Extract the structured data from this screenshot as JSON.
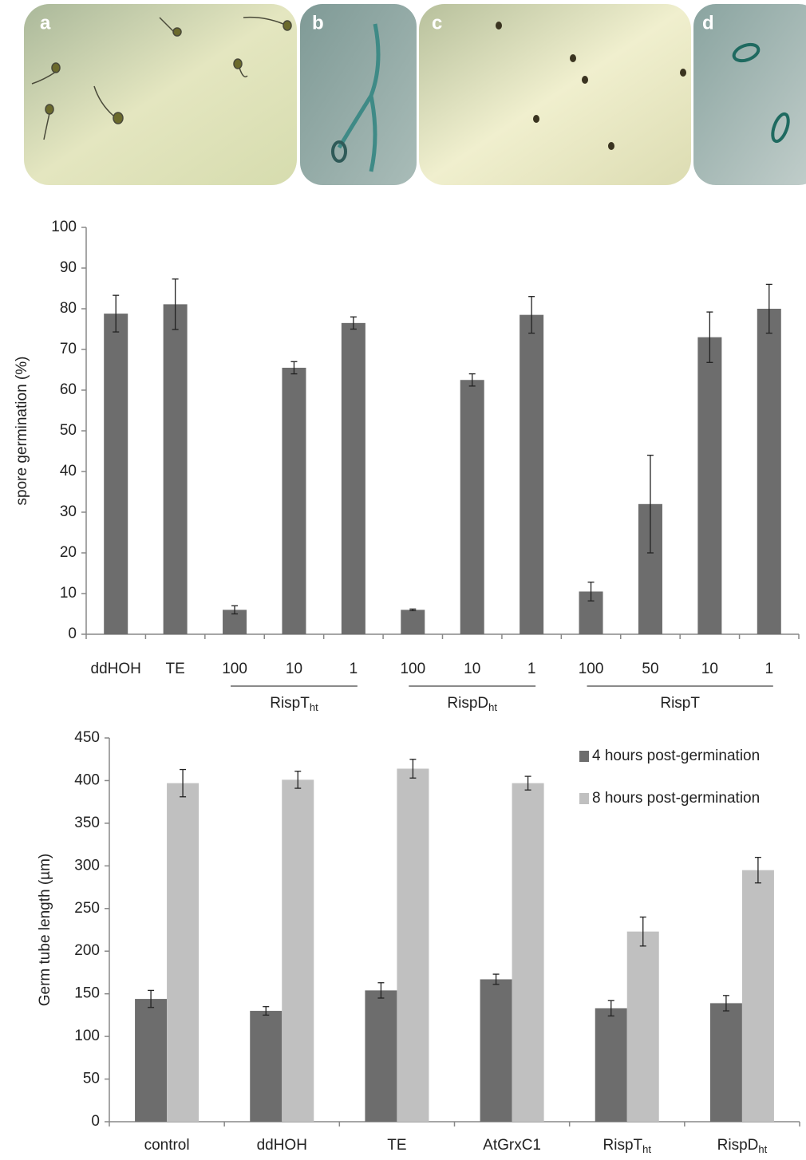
{
  "image_panels": [
    "a",
    "b",
    "c",
    "d"
  ],
  "chart_data": [
    {
      "type": "bar",
      "y_label": "spore germination (%)",
      "categories": [
        "ddHOH",
        "TE",
        "100",
        "10",
        "1",
        "100",
        "10",
        "1",
        "100",
        "50",
        "10",
        "1"
      ],
      "values": [
        78.8,
        81.1,
        6,
        65.5,
        76.5,
        6,
        62.5,
        78.5,
        10.5,
        32,
        73,
        80
      ],
      "errors": [
        4.5,
        6.2,
        1,
        1.5,
        1.5,
        0.2,
        1.5,
        4.5,
        2.3,
        12,
        6.2,
        6
      ],
      "color": "#6d6d6d",
      "groups": [
        {
          "text": "RispT",
          "sub": "ht"
        },
        {
          "text": "RispD",
          "sub": "ht"
        },
        {
          "text": "RispT"
        }
      ],
      "ylim": [
        0,
        100
      ],
      "yticks": [
        0,
        10,
        20,
        30,
        40,
        50,
        60,
        70,
        80,
        90,
        100
      ],
      "grid": false
    },
    {
      "type": "bar",
      "y_label": "Germ tube length (µm)",
      "categories": [
        "control",
        "ddHOH",
        "TE",
        "AtGrxC1",
        {
          "text": "RispT",
          "sub": "ht"
        },
        {
          "text": "RispD",
          "sub": "ht"
        }
      ],
      "series": [
        {
          "name": "4 hours post-germination",
          "color": "#6d6d6d",
          "values": [
            144,
            130,
            154,
            167,
            133,
            139
          ],
          "errors": [
            10,
            5,
            9,
            6,
            9,
            9
          ]
        },
        {
          "name": "8 hours post-germination",
          "color": "#c0c0c0",
          "values": [
            397,
            401,
            414,
            397,
            223,
            295
          ],
          "errors": [
            16,
            10,
            11,
            8,
            17,
            15
          ]
        }
      ],
      "ylim": [
        0,
        450
      ],
      "yticks": [
        0,
        50,
        100,
        150,
        200,
        250,
        300,
        350,
        400,
        450
      ],
      "grid": false,
      "legend": "top-right"
    }
  ]
}
